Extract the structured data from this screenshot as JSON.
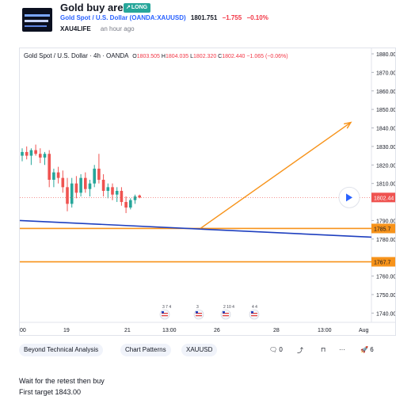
{
  "idea": {
    "title": "Gold buy area",
    "badge": "LONG",
    "symbol": "Gold Spot / U.S. Dollar (OANDA:XAUUSD)",
    "price": "1801.751",
    "change": "−1.755",
    "change_pct": "−0.10%",
    "author": "XAU4LIFE",
    "published": "an hour ago"
  },
  "chart": {
    "legend_title": "Gold Spot / U.S. Dollar · 4h · OANDA",
    "ohlc": {
      "o": "1803.505",
      "h": "1804.035",
      "l": "1802.320",
      "c": "1802.440",
      "change": "−1.065 (−0.06%)"
    },
    "current_price_label": "1802.44",
    "level_labels": [
      "1785.7",
      "1767.7"
    ],
    "price_ticks": [
      "1880.00",
      "1870.00",
      "1860.00",
      "1850.00",
      "1840.00",
      "1830.00",
      "1820.00",
      "1810.00",
      "1790.00",
      "1780.00",
      "1760.00",
      "1750.00",
      "1740.00"
    ],
    "time_ticks": [
      "00",
      "19",
      "21",
      "13:00",
      "26",
      "28",
      "13:00",
      "Aug"
    ],
    "event_labels": [
      "3 7 4",
      "3",
      "2 10 4",
      "4 4"
    ],
    "colors": {
      "up": "#26a69a",
      "down": "#ef5350",
      "support": "#f7931a",
      "trendline": "#1e3fbf",
      "projection": "#f7931a",
      "accent": "#2962ff"
    }
  },
  "chart_data": {
    "type": "candlestick",
    "symbol": "XAUUSD",
    "timeframe": "4h",
    "ylim": [
      1735,
      1883
    ],
    "candles": [
      {
        "o": 1825,
        "h": 1829,
        "l": 1822,
        "c": 1827
      },
      {
        "o": 1827,
        "h": 1830,
        "l": 1823,
        "c": 1825
      },
      {
        "o": 1825,
        "h": 1829,
        "l": 1820,
        "c": 1828
      },
      {
        "o": 1828,
        "h": 1831,
        "l": 1825,
        "c": 1826
      },
      {
        "o": 1826,
        "h": 1829,
        "l": 1821,
        "c": 1824
      },
      {
        "o": 1824,
        "h": 1827,
        "l": 1820,
        "c": 1826
      },
      {
        "o": 1826,
        "h": 1828,
        "l": 1808,
        "c": 1812
      },
      {
        "o": 1812,
        "h": 1818,
        "l": 1808,
        "c": 1816
      },
      {
        "o": 1816,
        "h": 1819,
        "l": 1810,
        "c": 1813
      },
      {
        "o": 1813,
        "h": 1817,
        "l": 1805,
        "c": 1808
      },
      {
        "o": 1808,
        "h": 1813,
        "l": 1795,
        "c": 1799
      },
      {
        "o": 1799,
        "h": 1813,
        "l": 1797,
        "c": 1810
      },
      {
        "o": 1810,
        "h": 1814,
        "l": 1802,
        "c": 1805
      },
      {
        "o": 1805,
        "h": 1815,
        "l": 1803,
        "c": 1813
      },
      {
        "o": 1813,
        "h": 1816,
        "l": 1805,
        "c": 1807
      },
      {
        "o": 1807,
        "h": 1812,
        "l": 1803,
        "c": 1810
      },
      {
        "o": 1810,
        "h": 1820,
        "l": 1808,
        "c": 1818
      },
      {
        "o": 1818,
        "h": 1826,
        "l": 1810,
        "c": 1812
      },
      {
        "o": 1812,
        "h": 1815,
        "l": 1803,
        "c": 1806
      },
      {
        "o": 1806,
        "h": 1810,
        "l": 1802,
        "c": 1808
      },
      {
        "o": 1808,
        "h": 1810,
        "l": 1801,
        "c": 1804
      },
      {
        "o": 1804,
        "h": 1808,
        "l": 1800,
        "c": 1806
      },
      {
        "o": 1806,
        "h": 1808,
        "l": 1798,
        "c": 1800
      },
      {
        "o": 1800,
        "h": 1803,
        "l": 1794,
        "c": 1797
      },
      {
        "o": 1797,
        "h": 1802,
        "l": 1796,
        "c": 1801
      },
      {
        "o": 1801,
        "h": 1804,
        "l": 1799,
        "c": 1803
      },
      {
        "o": 1803.5,
        "h": 1804,
        "l": 1802,
        "c": 1802.4
      }
    ],
    "horizontal_levels": [
      1785.7,
      1767.7
    ],
    "current_price": 1802.44,
    "trendline": {
      "from_price": 1790,
      "to_price": 1781
    },
    "projection": {
      "from_price": 1785.7,
      "to_price": 1843
    }
  },
  "tags": [
    "Beyond Technical Analysis",
    "Chart Patterns",
    "XAUUSD"
  ],
  "actions": {
    "comments": "0",
    "boosts": "6"
  },
  "description": {
    "line1": "Wait for the retest then buy",
    "line2": "First target 1843.00"
  }
}
